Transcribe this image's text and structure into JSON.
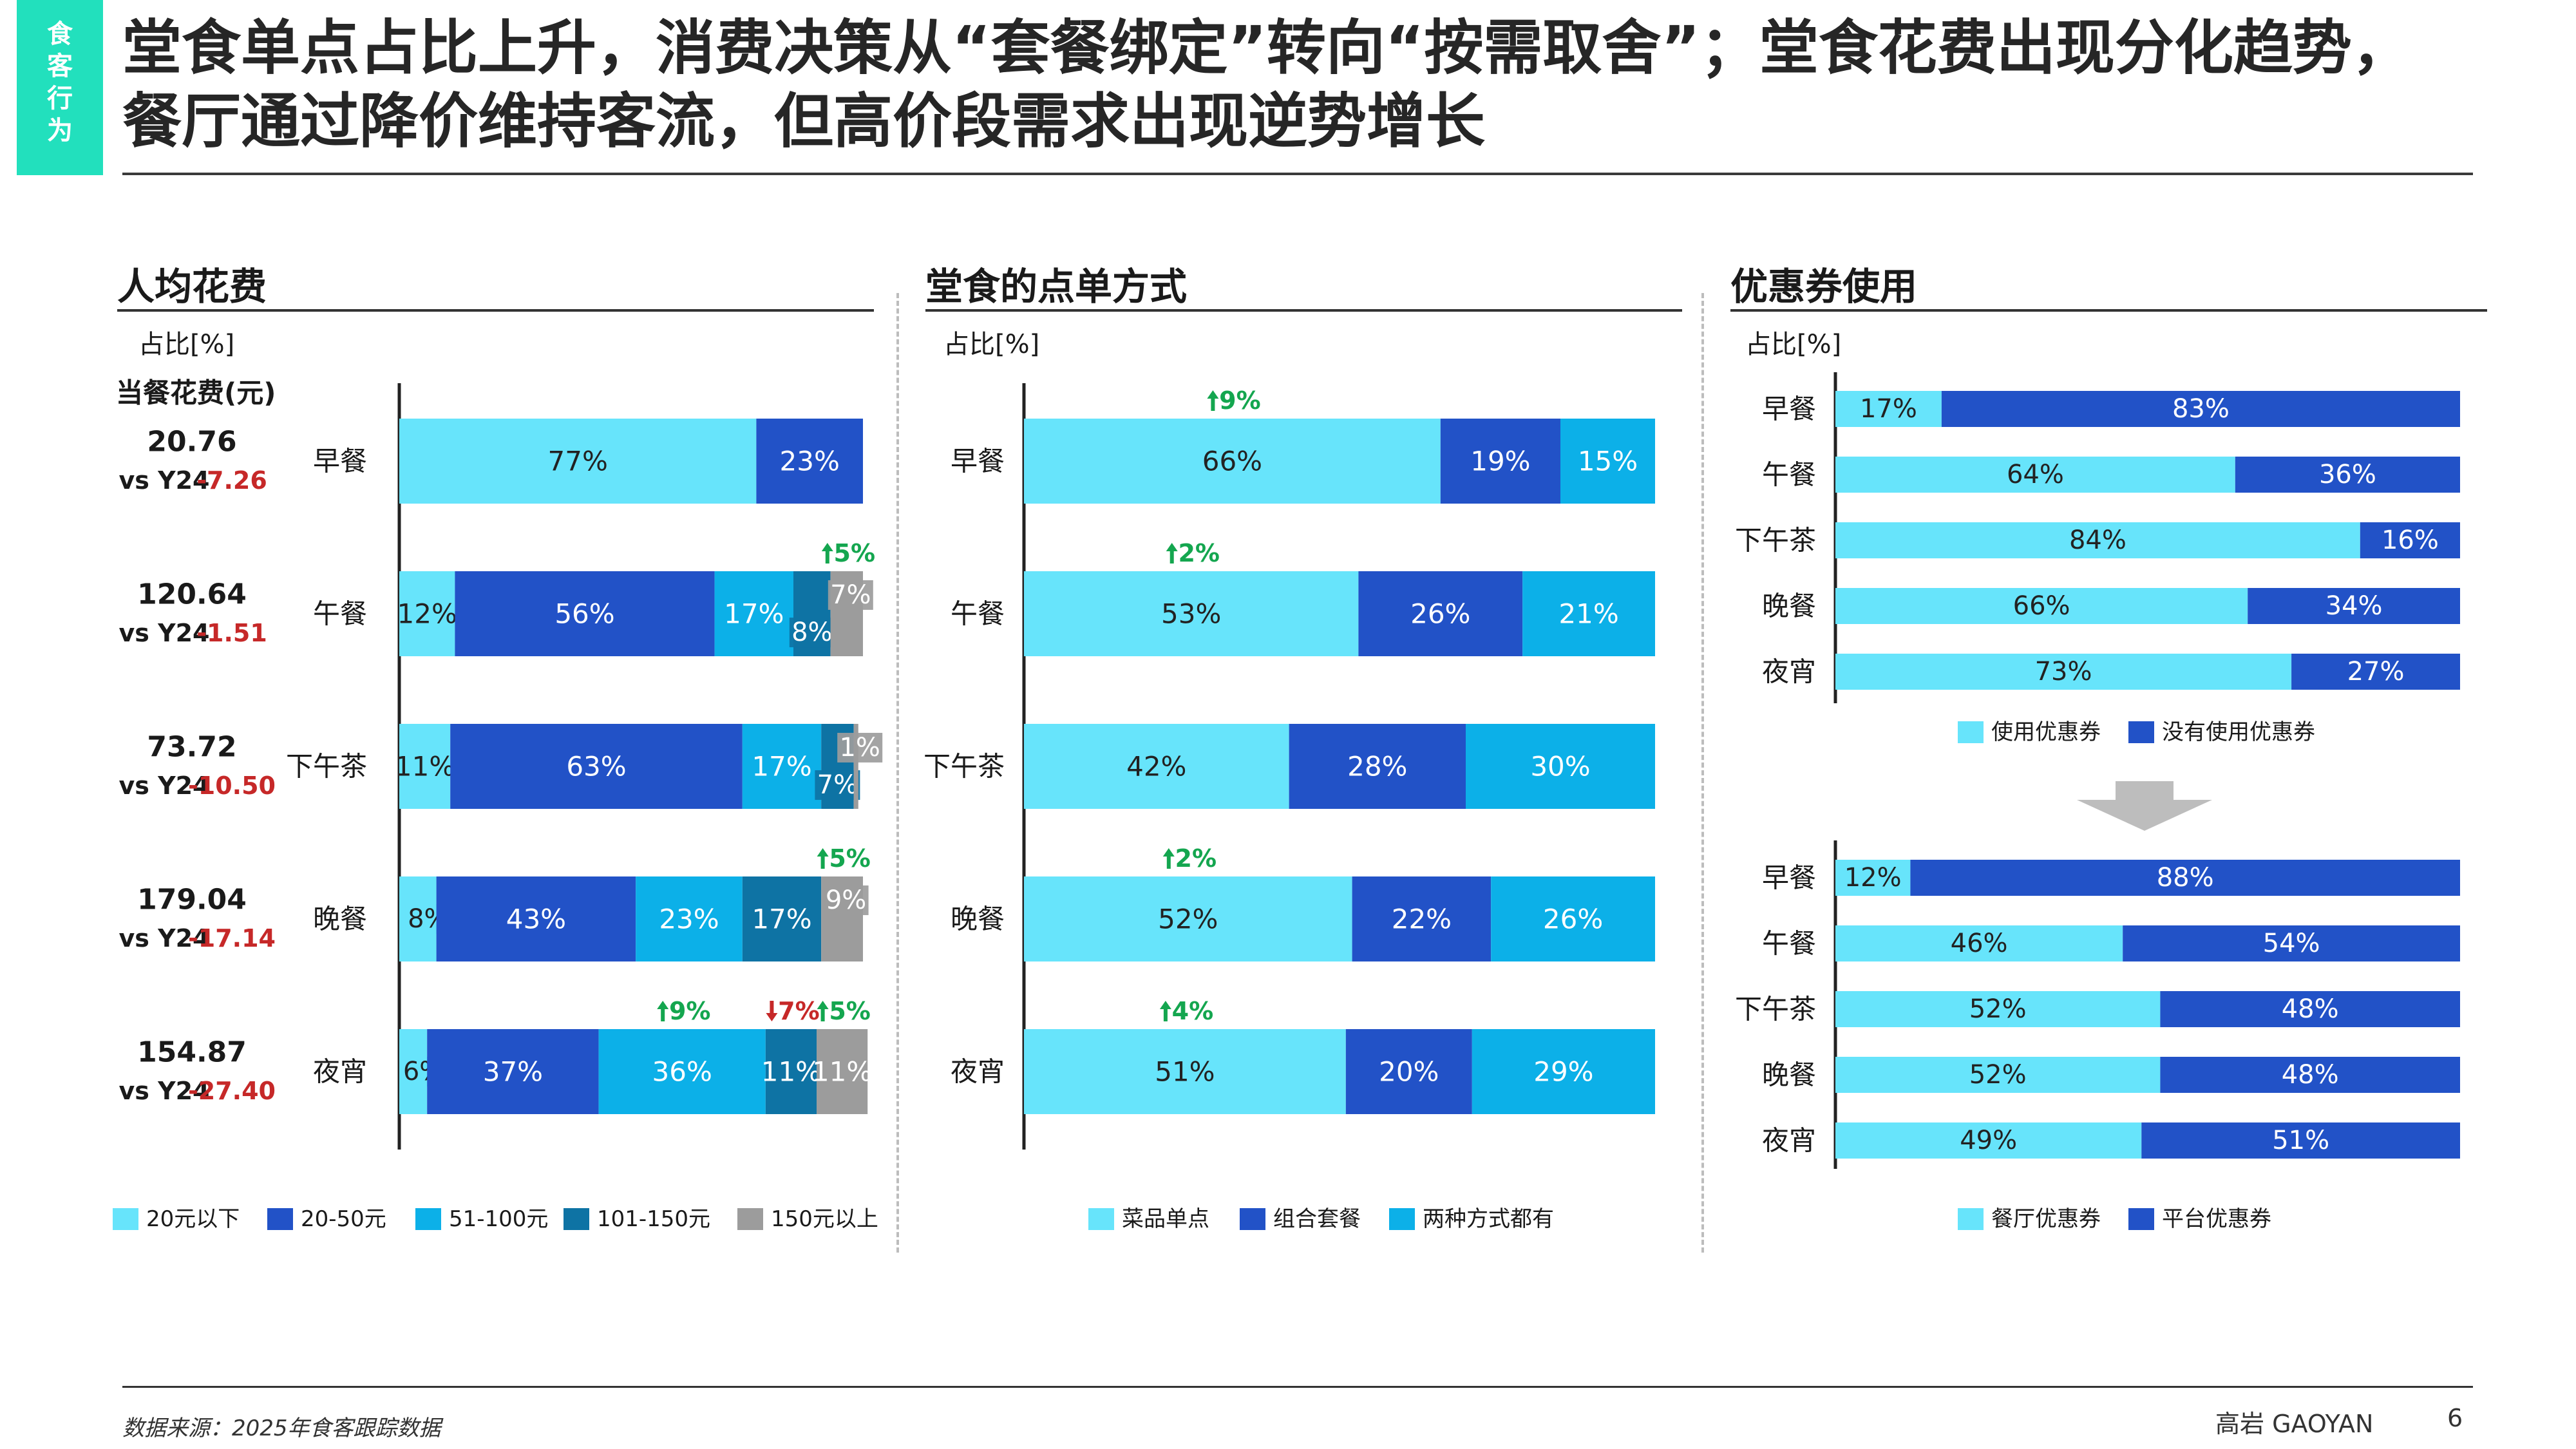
{
  "tag": [
    "食",
    "客",
    "行",
    "为"
  ],
  "title": "堂食单点占比上升，消费决策从“套餐绑定”转向“按需取舍”；堂食花费出现分化趋势，餐厅通过降价维持客流，但高价段需求出现逆势增长",
  "colors": {
    "c1": "#67e4fb",
    "c2": "#2252c7",
    "c3": "#0cb0e8",
    "c4": "#0e73a4",
    "c5": "#9c9c9c",
    "up": "#14a64f",
    "down": "#c62828"
  },
  "footer": {
    "source": "数据来源：2025年食客跟踪数据",
    "brand": "高岩 GAOYAN",
    "page": "6"
  },
  "chart_data": [
    {
      "title": "人均花费",
      "type": "bar",
      "orientation": "horizontal-stacked",
      "unit_label": "占比[%]",
      "side_header": "当餐花费(元)",
      "categories": [
        "早餐",
        "午餐",
        "下午茶",
        "晚餐",
        "夜宵"
      ],
      "side_values": [
        "20.76",
        "120.64",
        "73.72",
        "179.04",
        "154.87"
      ],
      "side_compare_label": "vs Y24",
      "side_deltas": [
        "-7.26",
        "-1.51",
        "-10.50",
        "-17.14",
        "-27.40"
      ],
      "series": [
        {
          "name": "20元以下",
          "values": [
            77,
            12,
            11,
            8,
            6
          ]
        },
        {
          "name": "20-50元",
          "values": [
            23,
            56,
            63,
            43,
            37
          ]
        },
        {
          "name": "51-100元",
          "values": [
            0,
            17,
            17,
            23,
            36
          ]
        },
        {
          "name": "101-150元",
          "values": [
            0,
            8,
            7,
            17,
            11
          ]
        },
        {
          "name": "150元以上",
          "values": [
            0,
            7,
            1,
            9,
            11
          ]
        }
      ],
      "changes": [
        {
          "row": 1,
          "series": 4,
          "dir": "up",
          "text": "5%"
        },
        {
          "row": 3,
          "series": 4,
          "dir": "up",
          "text": "5%"
        },
        {
          "row": 4,
          "series": 2,
          "dir": "up",
          "text": "9%"
        },
        {
          "row": 4,
          "series": 3,
          "dir": "down",
          "text": "7%"
        },
        {
          "row": 4,
          "series": 4,
          "dir": "up",
          "text": "5%"
        }
      ]
    },
    {
      "title": "堂食的点单方式",
      "type": "bar",
      "orientation": "horizontal-stacked",
      "unit_label": "占比[%]",
      "categories": [
        "早餐",
        "午餐",
        "下午茶",
        "晚餐",
        "夜宵"
      ],
      "series": [
        {
          "name": "菜品单点",
          "values": [
            66,
            53,
            42,
            52,
            51
          ]
        },
        {
          "name": "组合套餐",
          "values": [
            19,
            26,
            28,
            22,
            20
          ]
        },
        {
          "name": "两种方式都有",
          "values": [
            15,
            21,
            30,
            26,
            29
          ]
        }
      ],
      "changes": [
        {
          "row": 0,
          "series": 0,
          "dir": "up",
          "text": "9%"
        },
        {
          "row": 1,
          "series": 0,
          "dir": "up",
          "text": "2%"
        },
        {
          "row": 3,
          "series": 0,
          "dir": "up",
          "text": "2%"
        },
        {
          "row": 4,
          "series": 0,
          "dir": "up",
          "text": "4%"
        }
      ]
    },
    {
      "title": "优惠券使用",
      "type": "bar",
      "orientation": "horizontal-stacked",
      "unit_label": "占比[%]",
      "categories": [
        "早餐",
        "午餐",
        "下午茶",
        "晚餐",
        "夜宵"
      ],
      "series": [
        {
          "name": "使用优惠券",
          "values": [
            17,
            64,
            84,
            66,
            73
          ]
        },
        {
          "name": "没有使用优惠券",
          "values": [
            83,
            36,
            16,
            34,
            27
          ]
        }
      ]
    },
    {
      "type": "bar",
      "orientation": "horizontal-stacked",
      "categories": [
        "早餐",
        "午餐",
        "下午茶",
        "晚餐",
        "夜宵"
      ],
      "series": [
        {
          "name": "餐厅优惠券",
          "values": [
            12,
            46,
            52,
            52,
            49
          ]
        },
        {
          "name": "平台优惠券",
          "values": [
            88,
            54,
            48,
            48,
            51
          ]
        }
      ]
    }
  ]
}
